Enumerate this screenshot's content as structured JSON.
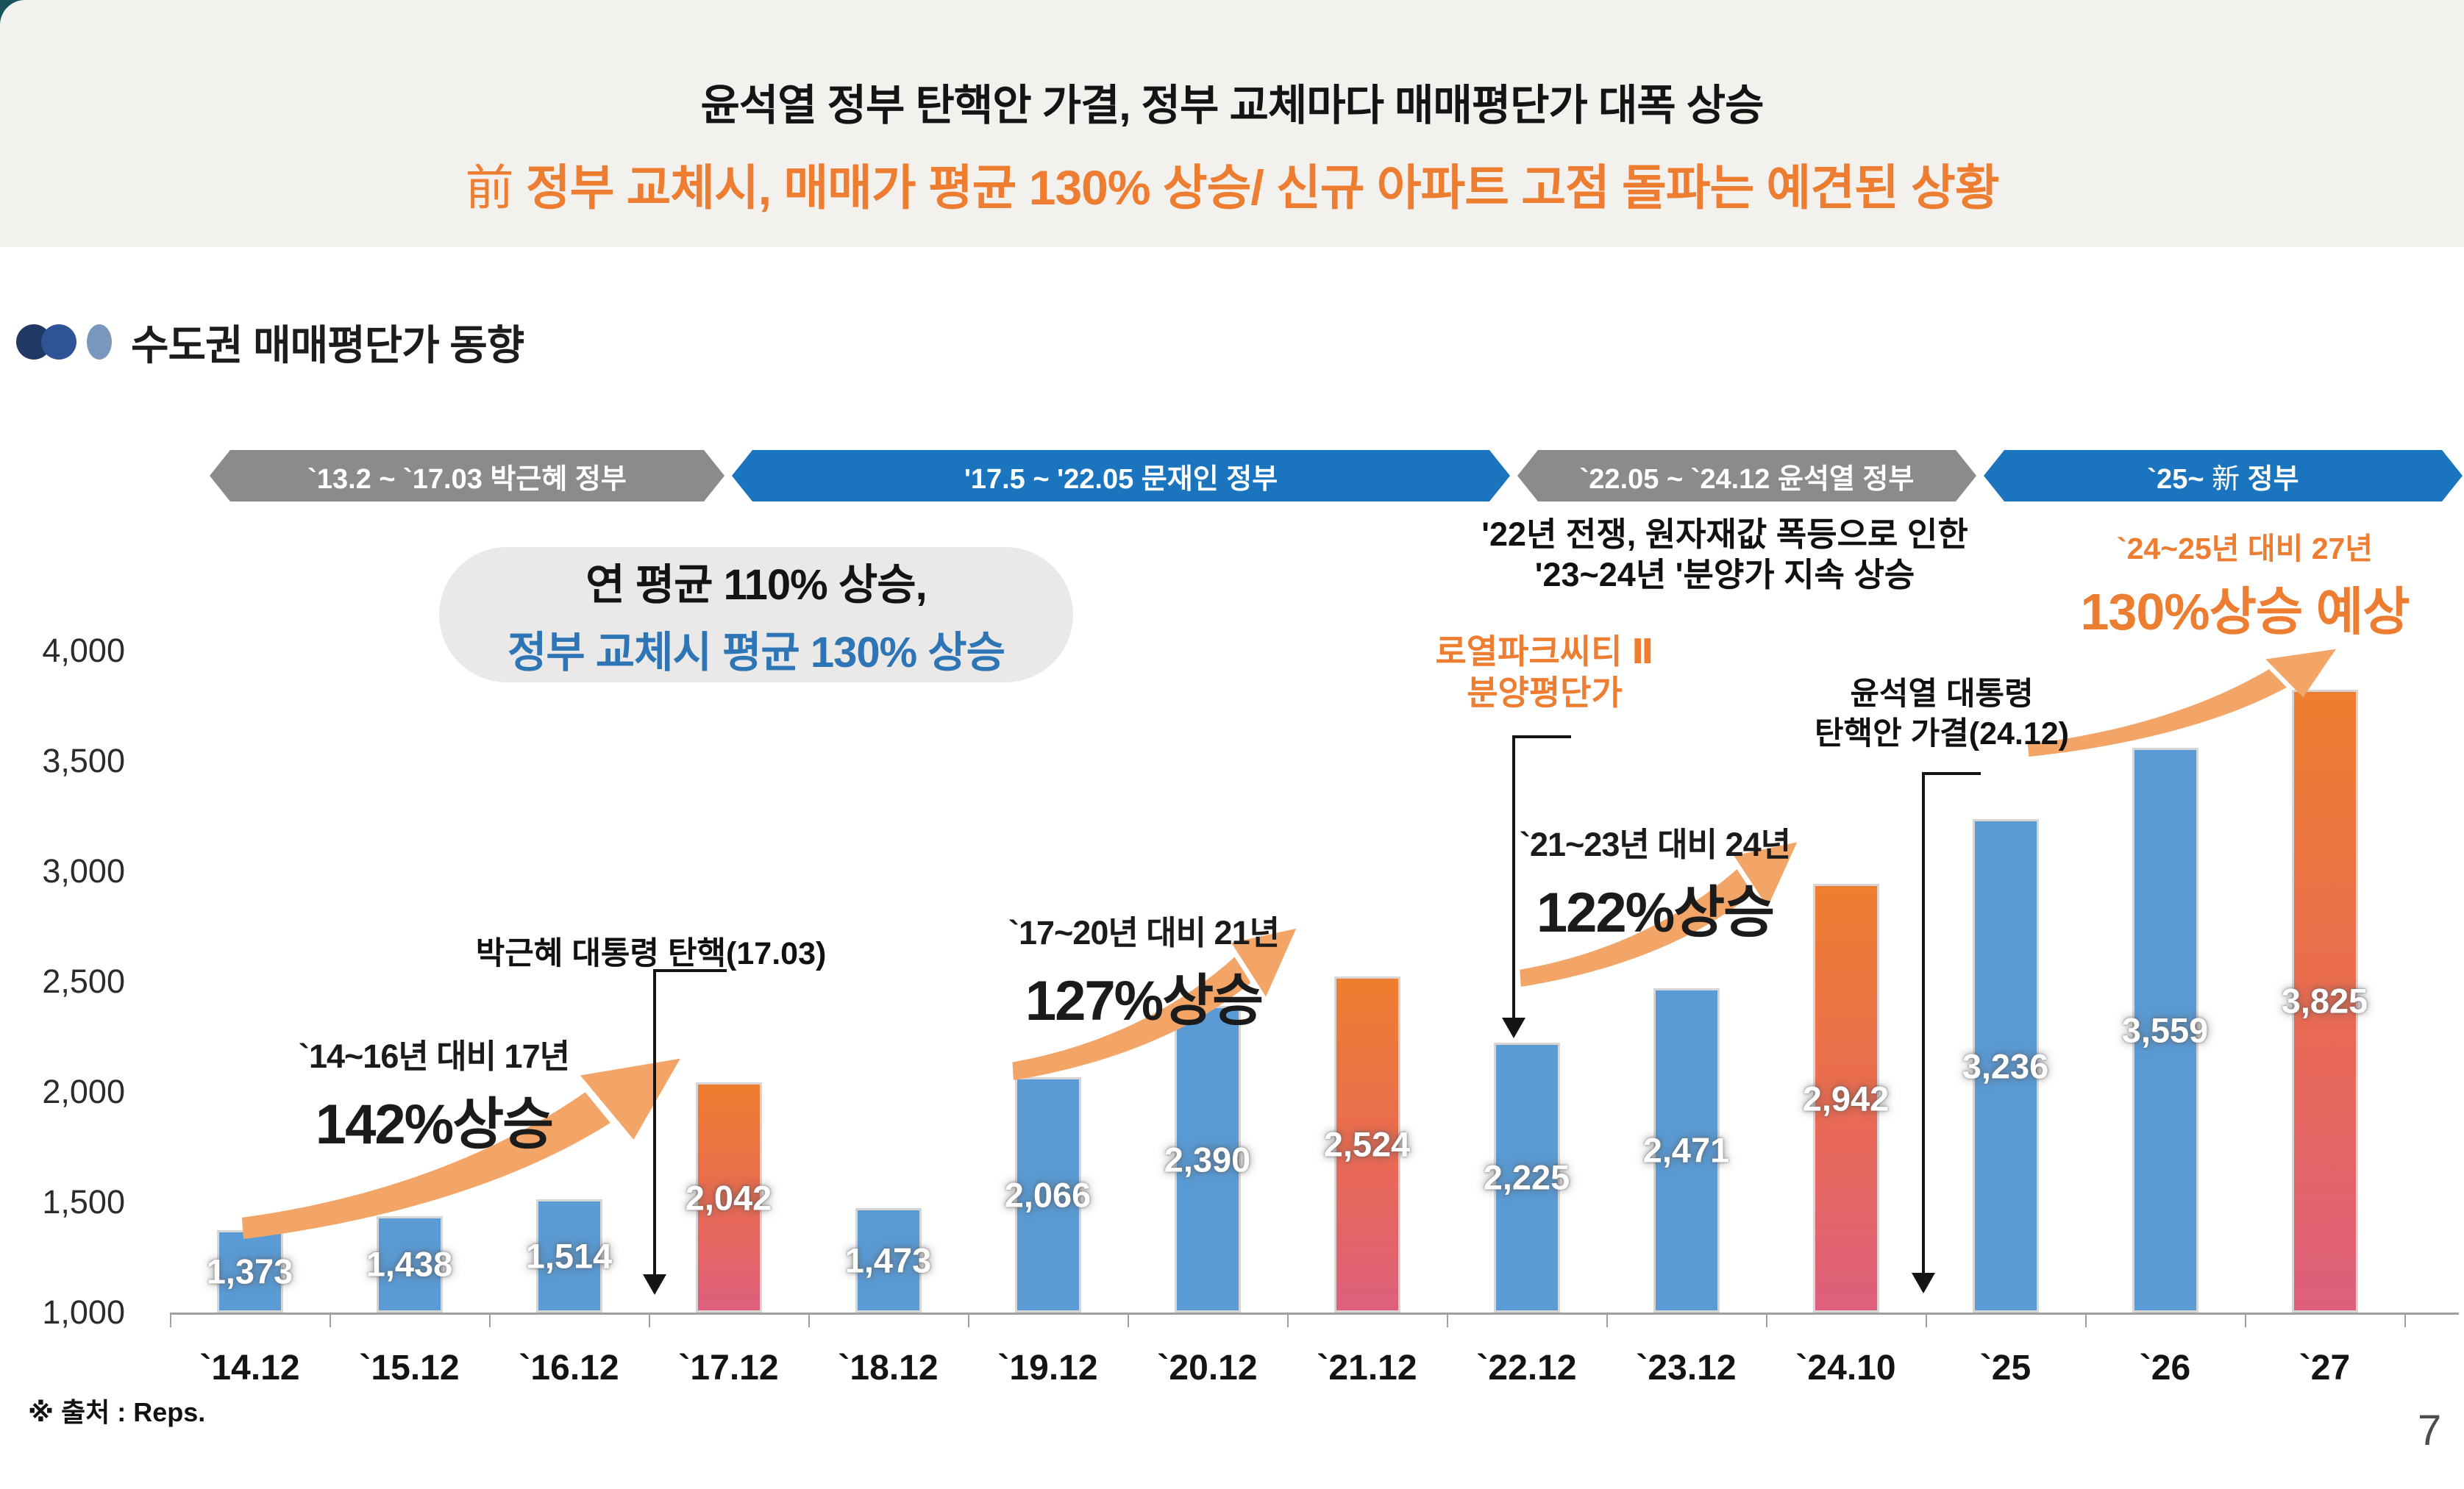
{
  "header": {
    "title_line1": "윤석열 정부 탄핵안 가결, 정부 교체마다 매매평단가 대폭 상승",
    "title_line2_hanja": "前",
    "title_line2_rest": " 정부 교체시, 매매가 평균 130% 상승/ 신규 아파트 고점 돌파는 예견된 상황",
    "accent_color": "#ed7d31"
  },
  "section": {
    "title": "수도권 매매평단가 동향"
  },
  "timeline": [
    {
      "label": "`13.2 ~ `17.03 박근혜 정부",
      "color": "#8b8b8b"
    },
    {
      "label": "'17.5 ~ '22.05 문재인 정부",
      "color": "#1b74be"
    },
    {
      "label": "`22.05 ~ `24.12 윤석열 정부",
      "color": "#8b8b8b"
    },
    {
      "label_pre": "`25~ ",
      "label_hanja": "新",
      "label_post": " 정부",
      "color": "#1b74be"
    }
  ],
  "chart_data": {
    "type": "bar",
    "title": "수도권 매매평단가 동향",
    "categories": [
      "`14.12",
      "`15.12",
      "`16.12",
      "`17.12",
      "`18.12",
      "`19.12",
      "`20.12",
      "`21.12",
      "`22.12",
      "`23.12",
      "`24.10",
      "`25",
      "`26",
      "`27"
    ],
    "values": [
      1373,
      1438,
      1514,
      2042,
      1473,
      2066,
      2390,
      2524,
      2225,
      2471,
      2942,
      3236,
      3559,
      3825
    ],
    "highlight_indexes": [
      3,
      7,
      10,
      13
    ],
    "y_ticks": [
      4000,
      3500,
      3000,
      2500,
      2000,
      1500,
      1000
    ],
    "ylim": [
      1000,
      4000
    ],
    "grid": false,
    "legend": "none",
    "bar_color_default": "#5b9bd5",
    "bar_gradient_top": "#ee7e2f",
    "bar_gradient_bottom": "#dd5f7c"
  },
  "annotations": {
    "bubble_line1": "연 평균 110% 상승,",
    "bubble_line2": "정부 교체시 평균 130% 상승",
    "war_line1": "'22년 전쟁, 원자재값 폭등으로 인한",
    "war_line2": "'23~24년 '분양가 지속 상승",
    "forecast_line1": "`24~25년 대비 27년",
    "forecast_line2": "130%상승 예상",
    "royal_line1": "로열파크씨티 Ⅱ",
    "royal_line2": "분양평단가",
    "yoon_line1": "윤석열 대통령",
    "yoon_line2": "탄핵안 가결(24.12)",
    "park_impeach": "박근혜 대통령 탄핵(17.03)",
    "rise1_line1": "`14~16년 대비 17년",
    "rise1_line2": "142%상승",
    "rise2_line1": "`17~20년 대비 21년",
    "rise2_line2": "127%상승",
    "rise3_line1": "`21~23년 대비 24년",
    "rise3_line2": "122%상승",
    "arrow_color": "#f3a567"
  },
  "footer": {
    "source": "※ 출처 : Reps.",
    "page": "7"
  }
}
